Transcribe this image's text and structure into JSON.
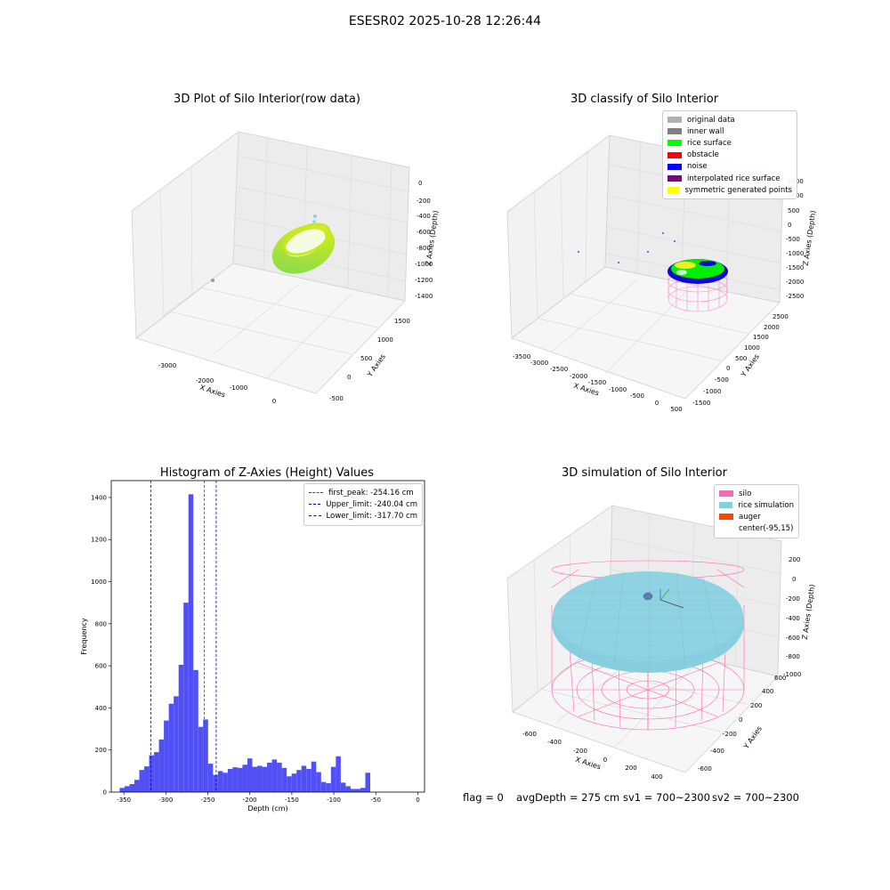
{
  "suptitle": "ESESR02 2025-10-28 12:26:44",
  "status": {
    "flag": "flag = 0",
    "avg": "avgDepth = 275 cm",
    "sv1": "sv1 = 700~2300",
    "sv2": "sv2 = 700~2300"
  },
  "colors": {
    "hist_bar": "#5050f5",
    "first_peak": "#ff0000",
    "limits": "#0000cc",
    "silo": "#ff69b4",
    "rice_sim": "#87cedf",
    "auger": "#ff4500"
  },
  "chart_data": [
    {
      "type": "scatter",
      "title": "3D Plot of Silo Interior(row data)",
      "xlabel": "X Axies",
      "ylabel": "Y Axies",
      "zlabel": "Z Axies (Depth)",
      "x_ticks": [
        "-3000",
        "-2000",
        "-1000",
        "0"
      ],
      "y_ticks": [
        "-500",
        "0",
        "500",
        "1000",
        "1500"
      ],
      "z_ticks": [
        "0",
        "-200",
        "-400",
        "-600",
        "-800",
        "-1000",
        "-1200",
        "-1400"
      ]
    },
    {
      "type": "scatter",
      "title": "3D classify of Silo Interior",
      "xlabel": "X Axies",
      "ylabel": "Y Axies",
      "zlabel": "Z Axies (Depth)",
      "x_ticks": [
        "-3500",
        "-3000",
        "-2500",
        "-2000",
        "-1500",
        "-1000",
        "-500",
        "0",
        "500"
      ],
      "y_ticks": [
        "-1500",
        "-1000",
        "-500",
        "0",
        "500",
        "1000",
        "1500",
        "2000",
        "2500"
      ],
      "z_ticks": [
        "1500",
        "1000",
        "500",
        "0",
        "-500",
        "-1000",
        "-1500",
        "-2000",
        "-2500"
      ],
      "legend": [
        {
          "label": "original data",
          "color": "#b0b0b0"
        },
        {
          "label": "inner wall",
          "color": "#808080"
        },
        {
          "label": "rice surface",
          "color": "#00ff00"
        },
        {
          "label": "obstacle",
          "color": "#ff0000"
        },
        {
          "label": "noise",
          "color": "#0000ff"
        },
        {
          "label": "interpolated rice surface",
          "color": "#800080"
        },
        {
          "label": "symmetric generated points",
          "color": "#ffff00"
        }
      ]
    },
    {
      "type": "bar",
      "title": "Histogram of Z-Axies (Height) Values",
      "xlabel": "Depth (cm)",
      "ylabel": "Frequency",
      "xlim": [
        -365,
        8
      ],
      "ylim": [
        0,
        1480
      ],
      "x_ticks": [
        -350,
        -300,
        -250,
        -200,
        -150,
        -100,
        -50,
        0
      ],
      "y_ticks": [
        0,
        200,
        400,
        600,
        800,
        1000,
        1200,
        1400
      ],
      "bin_start": -355,
      "bin_width": 5.85,
      "values": [
        20,
        28,
        38,
        58,
        105,
        122,
        175,
        190,
        250,
        340,
        420,
        455,
        605,
        900,
        1415,
        580,
        310,
        345,
        135,
        82,
        100,
        92,
        110,
        118,
        115,
        130,
        160,
        120,
        125,
        120,
        140,
        155,
        140,
        115,
        75,
        88,
        105,
        125,
        110,
        145,
        95,
        48,
        42,
        120,
        170,
        45,
        28,
        15,
        15,
        20,
        92
      ],
      "lines": [
        {
          "label": "first_peak: -254.16 cm",
          "x": -254.16,
          "color": "#ff0000"
        },
        {
          "label": "Upper_limit: -240.04 cm",
          "x": -240.04,
          "color": "#0000cc"
        },
        {
          "label": "Lower_limit: -317.70 cm",
          "x": -317.7,
          "color": "#0000cc"
        }
      ]
    },
    {
      "type": "area",
      "title": "3D simulation of Silo Interior",
      "xlabel": "X Axies",
      "ylabel": "Y Axies",
      "zlabel": "Z Axies (Depth)",
      "x_ticks": [
        "-600",
        "-400",
        "-200",
        "0",
        "200",
        "400"
      ],
      "y_ticks": [
        "-600",
        "-400",
        "-200",
        "0",
        "200",
        "400",
        "600"
      ],
      "z_ticks": [
        "200",
        "0",
        "-200",
        "-400",
        "-600",
        "-800",
        "-1000"
      ],
      "legend": [
        {
          "label": "silo",
          "color": "#ff69b4"
        },
        {
          "label": "rice simulation",
          "color": "#87cedf"
        },
        {
          "label": "auger",
          "color": "#ff4500"
        },
        {
          "label": "center(-95,15)",
          "color": "#ffffff"
        }
      ]
    }
  ]
}
